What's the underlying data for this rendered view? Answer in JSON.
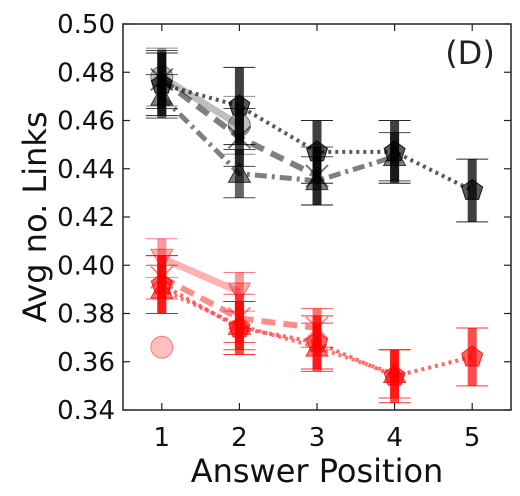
{
  "chart_data": {
    "type": "line",
    "panel_label": "(D)",
    "xlabel": "Answer Position",
    "ylabel": "Avg no. Links",
    "x": [
      1,
      2,
      3,
      4,
      5
    ],
    "xlim": [
      0.5,
      5.5
    ],
    "ylim": [
      0.34,
      0.5
    ],
    "yticks": [
      "0.34",
      "0.36",
      "0.38",
      "0.40",
      "0.42",
      "0.44",
      "0.46",
      "0.48",
      "0.50"
    ],
    "xticks": [
      "1",
      "2",
      "3",
      "4",
      "5"
    ],
    "grid": false,
    "series": [
      {
        "color": "#000000",
        "opacity": 0.25,
        "style": "solid",
        "marker": "circle",
        "values": [
          0.478,
          0.458,
          null,
          null,
          null
        ],
        "err": [
          0.012,
          0.012,
          null,
          null,
          null
        ]
      },
      {
        "color": "#000000",
        "opacity": 0.5,
        "style": "dash",
        "marker": "x",
        "values": [
          0.477,
          0.453,
          0.437,
          null,
          null
        ],
        "err": [
          0.012,
          0.012,
          0.012,
          null,
          null
        ]
      },
      {
        "color": "#000000",
        "opacity": 0.5,
        "style": "dashdot",
        "marker": "triangle",
        "values": [
          0.47,
          0.438,
          0.435,
          0.445,
          null
        ],
        "err": [
          0.009,
          0.01,
          0.01,
          0.01,
          null
        ]
      },
      {
        "color": "#000000",
        "opacity": 0.65,
        "style": "dot",
        "marker": "pentagon",
        "values": [
          0.475,
          0.466,
          0.447,
          0.447,
          0.431
        ],
        "err": [
          0.013,
          0.016,
          0.013,
          0.013,
          0.013
        ]
      },
      {
        "color": "#ff0000",
        "opacity": 0.25,
        "style": "solid",
        "marker": "circle",
        "values": [
          0.366,
          null,
          null,
          null,
          null
        ],
        "err": [
          null,
          null,
          null,
          null,
          null
        ]
      },
      {
        "color": "#ff0000",
        "opacity": 0.3,
        "style": "solid",
        "marker": "triangle-down",
        "values": [
          0.403,
          0.389,
          null,
          null,
          null
        ],
        "err": [
          0.008,
          0.008,
          null,
          null,
          null
        ]
      },
      {
        "color": "#ff0000",
        "opacity": 0.45,
        "style": "dash",
        "marker": "x",
        "values": [
          0.395,
          0.378,
          0.374,
          null,
          null
        ],
        "err": [
          0.009,
          0.01,
          0.008,
          null,
          null
        ]
      },
      {
        "color": "#ff0000",
        "opacity": 0.55,
        "style": "dot",
        "marker": "triangle",
        "values": [
          0.39,
          0.375,
          0.366,
          0.355,
          null
        ],
        "err": [
          0.01,
          0.01,
          0.01,
          0.01,
          null
        ]
      },
      {
        "color": "#ff0000",
        "opacity": 0.6,
        "style": "dot",
        "marker": "pentagon",
        "values": [
          0.392,
          0.374,
          0.368,
          0.354,
          0.362
        ],
        "err": [
          0.012,
          0.011,
          0.011,
          0.011,
          0.012
        ]
      }
    ]
  }
}
